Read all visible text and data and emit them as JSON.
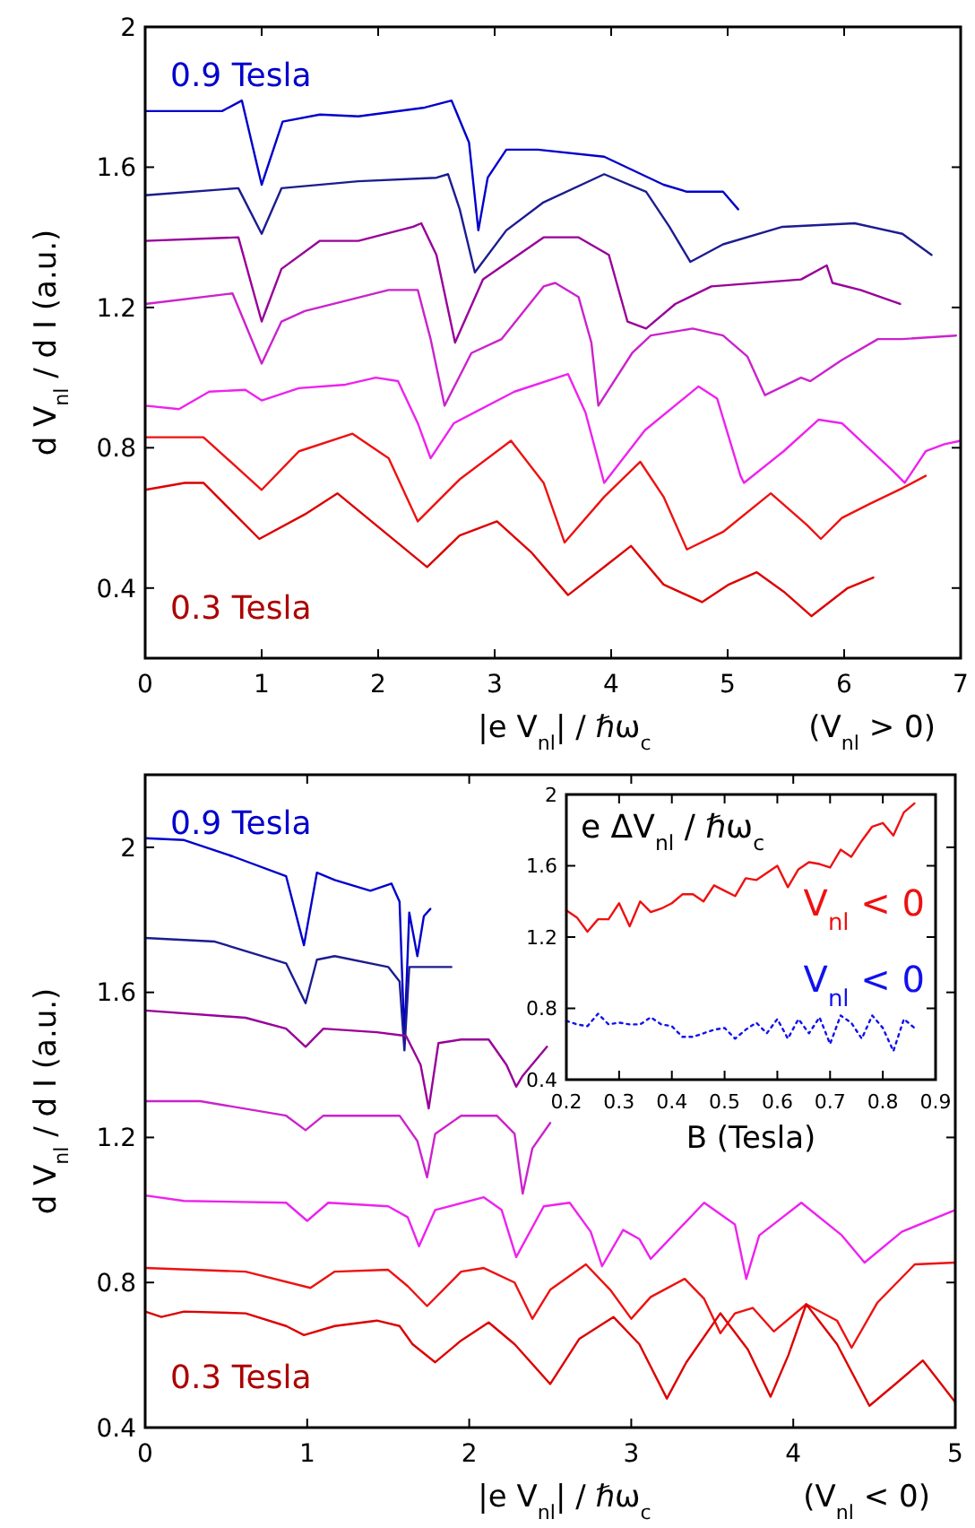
{
  "chart_data": [
    {
      "type": "line",
      "xlabel": "|e V$_{nl}$| / ℏω$_{c}$",
      "ylabel": "d V$_{nl}$ / d I (a.u.)",
      "xlim": [
        0,
        7
      ],
      "ylim": [
        0.2,
        2
      ],
      "xticks": [
        0,
        1,
        2,
        3,
        4,
        5,
        6,
        7
      ],
      "yticks": [
        0.4,
        0.8,
        1.2,
        1.6,
        2
      ],
      "annotations": [
        "0.9 Tesla",
        "0.3 Tesla",
        "(V$_{nl}$ > 0)"
      ],
      "series": [
        {
          "color": "#0000cc",
          "x": [
            0,
            0.66,
            0.83,
            1.0,
            1.18,
            1.5,
            1.83,
            2.4,
            2.63,
            2.78,
            2.86,
            2.94,
            3.1,
            3.37,
            3.94,
            4.45,
            4.65,
            4.96,
            5.09
          ],
          "values": [
            1.76,
            1.76,
            1.79,
            1.55,
            1.73,
            1.75,
            1.745,
            1.77,
            1.79,
            1.67,
            1.42,
            1.57,
            1.65,
            1.65,
            1.63,
            1.55,
            1.53,
            1.53,
            1.48
          ]
        },
        {
          "color": "#1c1c90",
          "x": [
            0,
            0.8,
            1.0,
            1.17,
            1.83,
            2.5,
            2.6,
            2.7,
            2.83,
            3.1,
            3.42,
            3.94,
            4.3,
            4.5,
            4.68,
            4.96,
            5.47,
            6.09,
            6.5,
            6.75
          ],
          "values": [
            1.52,
            1.54,
            1.41,
            1.54,
            1.56,
            1.57,
            1.58,
            1.48,
            1.3,
            1.42,
            1.5,
            1.58,
            1.53,
            1.43,
            1.33,
            1.38,
            1.43,
            1.44,
            1.41,
            1.35
          ]
        },
        {
          "color": "#990099",
          "x": [
            0,
            0.8,
            1.0,
            1.17,
            1.5,
            1.83,
            2.3,
            2.37,
            2.5,
            2.66,
            2.9,
            3.42,
            3.72,
            3.98,
            4.14,
            4.3,
            4.55,
            4.86,
            5.63,
            5.85,
            5.9,
            6.14,
            6.48
          ],
          "values": [
            1.39,
            1.4,
            1.16,
            1.31,
            1.39,
            1.39,
            1.43,
            1.44,
            1.35,
            1.1,
            1.28,
            1.4,
            1.4,
            1.35,
            1.16,
            1.14,
            1.21,
            1.26,
            1.28,
            1.32,
            1.27,
            1.25,
            1.21
          ]
        },
        {
          "color": "#cc22cc",
          "x": [
            0,
            0.75,
            1.0,
            1.17,
            1.37,
            2.09,
            2.34,
            2.45,
            2.57,
            2.8,
            3.06,
            3.42,
            3.52,
            3.72,
            3.83,
            3.89,
            4.18,
            4.34,
            4.7,
            4.96,
            5.17,
            5.32,
            5.63,
            5.71,
            5.98,
            6.29,
            6.5,
            6.96
          ],
          "values": [
            1.21,
            1.24,
            1.04,
            1.16,
            1.19,
            1.25,
            1.25,
            1.11,
            0.92,
            1.07,
            1.11,
            1.26,
            1.27,
            1.23,
            1.1,
            0.92,
            1.07,
            1.12,
            1.14,
            1.12,
            1.06,
            0.95,
            1.0,
            0.99,
            1.05,
            1.11,
            1.11,
            1.12
          ]
        },
        {
          "color": "#ee22ee",
          "x": [
            0,
            0.29,
            0.55,
            0.86,
            1.0,
            1.32,
            1.72,
            1.98,
            2.17,
            2.34,
            2.45,
            2.65,
            3.17,
            3.63,
            3.78,
            3.94,
            4.29,
            4.75,
            4.91,
            5.11,
            5.14,
            5.48,
            5.78,
            5.98,
            6.4,
            6.52,
            6.7,
            6.86,
            7
          ],
          "values": [
            0.92,
            0.91,
            0.96,
            0.965,
            0.935,
            0.97,
            0.98,
            1.0,
            0.99,
            0.87,
            0.77,
            0.87,
            0.96,
            1.01,
            0.9,
            0.7,
            0.85,
            0.975,
            0.94,
            0.72,
            0.7,
            0.79,
            0.88,
            0.87,
            0.74,
            0.7,
            0.79,
            0.81,
            0.82
          ]
        },
        {
          "color": "#ee1111",
          "x": [
            0,
            0.5,
            1.0,
            1.32,
            1.78,
            2.09,
            2.34,
            2.7,
            3.14,
            3.42,
            3.6,
            3.94,
            4.25,
            4.45,
            4.65,
            4.96,
            5.37,
            5.68,
            5.8,
            5.98,
            6.22,
            6.5,
            6.7
          ],
          "values": [
            0.83,
            0.83,
            0.68,
            0.79,
            0.84,
            0.77,
            0.59,
            0.71,
            0.82,
            0.7,
            0.53,
            0.66,
            0.76,
            0.66,
            0.51,
            0.56,
            0.67,
            0.58,
            0.54,
            0.6,
            0.64,
            0.685,
            0.72
          ]
        },
        {
          "color": "#dd0000",
          "x": [
            0,
            0.34,
            0.5,
            0.98,
            1.37,
            1.65,
            1.98,
            2.42,
            2.7,
            3.02,
            3.32,
            3.63,
            3.94,
            4.17,
            4.45,
            4.78,
            5.01,
            5.25,
            5.48,
            5.72,
            6.03,
            6.25
          ],
          "values": [
            0.68,
            0.7,
            0.7,
            0.54,
            0.61,
            0.67,
            0.58,
            0.46,
            0.55,
            0.59,
            0.5,
            0.38,
            0.46,
            0.52,
            0.41,
            0.36,
            0.41,
            0.445,
            0.39,
            0.32,
            0.4,
            0.43
          ]
        }
      ]
    },
    {
      "type": "line",
      "xlabel": "|e V$_{nl}$| / ℏω$_{c}$",
      "ylabel": "d V$_{nl}$ / d I (a.u.)",
      "xlim": [
        0,
        5
      ],
      "ylim": [
        0.4,
        2.2
      ],
      "xticks": [
        0,
        1,
        2,
        3,
        4,
        5
      ],
      "yticks": [
        0.4,
        0.8,
        1.2,
        1.6,
        2
      ],
      "annotations": [
        "0.9 Tesla",
        "0.3 Tesla",
        "(V$_{nl}$ < 0)"
      ],
      "series": [
        {
          "color": "#0000cc",
          "x": [
            0,
            0.24,
            0.54,
            0.87,
            0.98,
            1.06,
            1.17,
            1.39,
            1.52,
            1.57,
            1.6,
            1.63,
            1.68,
            1.72,
            1.76
          ],
          "values": [
            2.025,
            2.02,
            1.975,
            1.92,
            1.73,
            1.93,
            1.91,
            1.88,
            1.9,
            1.85,
            1.47,
            1.82,
            1.7,
            1.81,
            1.83
          ]
        },
        {
          "color": "#1c1c90",
          "x": [
            0,
            0.43,
            0.87,
            0.99,
            1.06,
            1.17,
            1.5,
            1.57,
            1.6,
            1.63,
            1.72,
            1.89
          ],
          "values": [
            1.75,
            1.74,
            1.68,
            1.57,
            1.69,
            1.7,
            1.67,
            1.63,
            1.44,
            1.67,
            1.67,
            1.67
          ]
        },
        {
          "color": "#990099",
          "x": [
            0,
            0.62,
            0.87,
            0.99,
            1.1,
            1.43,
            1.61,
            1.7,
            1.75,
            1.81,
            1.95,
            2.12,
            2.23,
            2.29,
            2.33,
            2.48
          ],
          "values": [
            1.55,
            1.53,
            1.5,
            1.45,
            1.5,
            1.49,
            1.48,
            1.4,
            1.28,
            1.46,
            1.47,
            1.47,
            1.4,
            1.34,
            1.37,
            1.45
          ]
        },
        {
          "color": "#cc22cc",
          "x": [
            0,
            0.34,
            0.87,
            0.99,
            1.1,
            1.57,
            1.68,
            1.74,
            1.79,
            1.95,
            2.17,
            2.28,
            2.33,
            2.39,
            2.5
          ],
          "values": [
            1.3,
            1.3,
            1.26,
            1.22,
            1.26,
            1.26,
            1.19,
            1.09,
            1.21,
            1.26,
            1.26,
            1.21,
            1.045,
            1.17,
            1.24
          ]
        },
        {
          "color": "#ee22ee",
          "x": [
            0,
            0.24,
            0.87,
            1.0,
            1.13,
            1.5,
            1.62,
            1.69,
            1.79,
            2.09,
            2.2,
            2.29,
            2.46,
            2.62,
            2.75,
            2.82,
            2.95,
            3.05,
            3.12,
            3.45,
            3.64,
            3.71,
            3.79,
            4.05,
            4.3,
            4.44,
            4.67,
            5
          ],
          "values": [
            1.04,
            1.025,
            1.02,
            0.97,
            1.02,
            1.01,
            0.98,
            0.9,
            1.0,
            1.035,
            1.0,
            0.87,
            1.01,
            1.02,
            0.94,
            0.845,
            0.945,
            0.92,
            0.865,
            1.02,
            0.96,
            0.81,
            0.93,
            1.02,
            0.93,
            0.855,
            0.94,
            1.0
          ]
        },
        {
          "color": "#ee1111",
          "x": [
            0,
            0.62,
            1.02,
            1.17,
            1.5,
            1.62,
            1.74,
            1.95,
            2.09,
            2.28,
            2.39,
            2.5,
            2.72,
            2.87,
            3.0,
            3.12,
            3.33,
            3.45,
            3.55,
            3.64,
            3.75,
            3.88,
            4.08,
            4.27,
            4.36,
            4.52,
            4.75,
            5
          ],
          "values": [
            0.84,
            0.83,
            0.785,
            0.83,
            0.835,
            0.79,
            0.735,
            0.83,
            0.84,
            0.8,
            0.7,
            0.78,
            0.85,
            0.78,
            0.7,
            0.76,
            0.81,
            0.755,
            0.66,
            0.715,
            0.73,
            0.665,
            0.74,
            0.695,
            0.62,
            0.745,
            0.85,
            0.855
          ]
        },
        {
          "color": "#dd0000",
          "x": [
            0,
            0.1,
            0.24,
            0.62,
            0.87,
            0.98,
            1.17,
            1.43,
            1.57,
            1.65,
            1.79,
            1.95,
            2.12,
            2.28,
            2.5,
            2.68,
            2.89,
            3.05,
            3.22,
            3.34,
            3.55,
            3.72,
            3.86,
            3.97,
            4.08,
            4.27,
            4.47,
            4.63,
            4.8,
            5
          ],
          "values": [
            0.72,
            0.705,
            0.72,
            0.715,
            0.68,
            0.655,
            0.68,
            0.695,
            0.68,
            0.63,
            0.58,
            0.64,
            0.69,
            0.63,
            0.52,
            0.645,
            0.705,
            0.63,
            0.48,
            0.58,
            0.715,
            0.615,
            0.485,
            0.6,
            0.74,
            0.63,
            0.46,
            0.52,
            0.585,
            0.47
          ]
        }
      ]
    },
    {
      "type": "line",
      "title": "e ΔV$_{nl}$ / ℏω$_{c}$",
      "xlabel": "B (Tesla)",
      "xlim": [
        0.2,
        0.9
      ],
      "ylim": [
        0.4,
        2
      ],
      "xticks": [
        0.2,
        0.3,
        0.4,
        0.5,
        0.6,
        0.7,
        0.8,
        0.9
      ],
      "yticks": [
        0.4,
        0.8,
        1.2,
        1.6,
        2
      ],
      "x": [
        0.2,
        0.22,
        0.24,
        0.26,
        0.28,
        0.3,
        0.32,
        0.34,
        0.36,
        0.38,
        0.4,
        0.42,
        0.44,
        0.46,
        0.48,
        0.5,
        0.52,
        0.54,
        0.56,
        0.58,
        0.6,
        0.62,
        0.64,
        0.66,
        0.68,
        0.7,
        0.72,
        0.74,
        0.76,
        0.78,
        0.8,
        0.82,
        0.84,
        0.86
      ],
      "series": [
        {
          "name": "V$_{nl}$ < 0",
          "color": "#ee1111",
          "values": [
            1.35,
            1.31,
            1.23,
            1.3,
            1.3,
            1.39,
            1.26,
            1.4,
            1.34,
            1.36,
            1.39,
            1.44,
            1.44,
            1.4,
            1.49,
            1.46,
            1.43,
            1.53,
            1.52,
            1.56,
            1.6,
            1.48,
            1.58,
            1.62,
            1.61,
            1.59,
            1.69,
            1.65,
            1.74,
            1.82,
            1.84,
            1.77,
            1.9,
            1.95
          ]
        },
        {
          "name": "V$_{nl}$ < 0",
          "color": "#1111ee",
          "line_style": "dotted",
          "values": [
            0.73,
            0.71,
            0.7,
            0.77,
            0.71,
            0.72,
            0.71,
            0.71,
            0.75,
            0.71,
            0.7,
            0.64,
            0.64,
            0.66,
            0.68,
            0.69,
            0.63,
            0.68,
            0.72,
            0.66,
            0.74,
            0.63,
            0.74,
            0.66,
            0.75,
            0.6,
            0.76,
            0.72,
            0.63,
            0.76,
            0.69,
            0.56,
            0.74,
            0.69
          ]
        }
      ]
    }
  ]
}
